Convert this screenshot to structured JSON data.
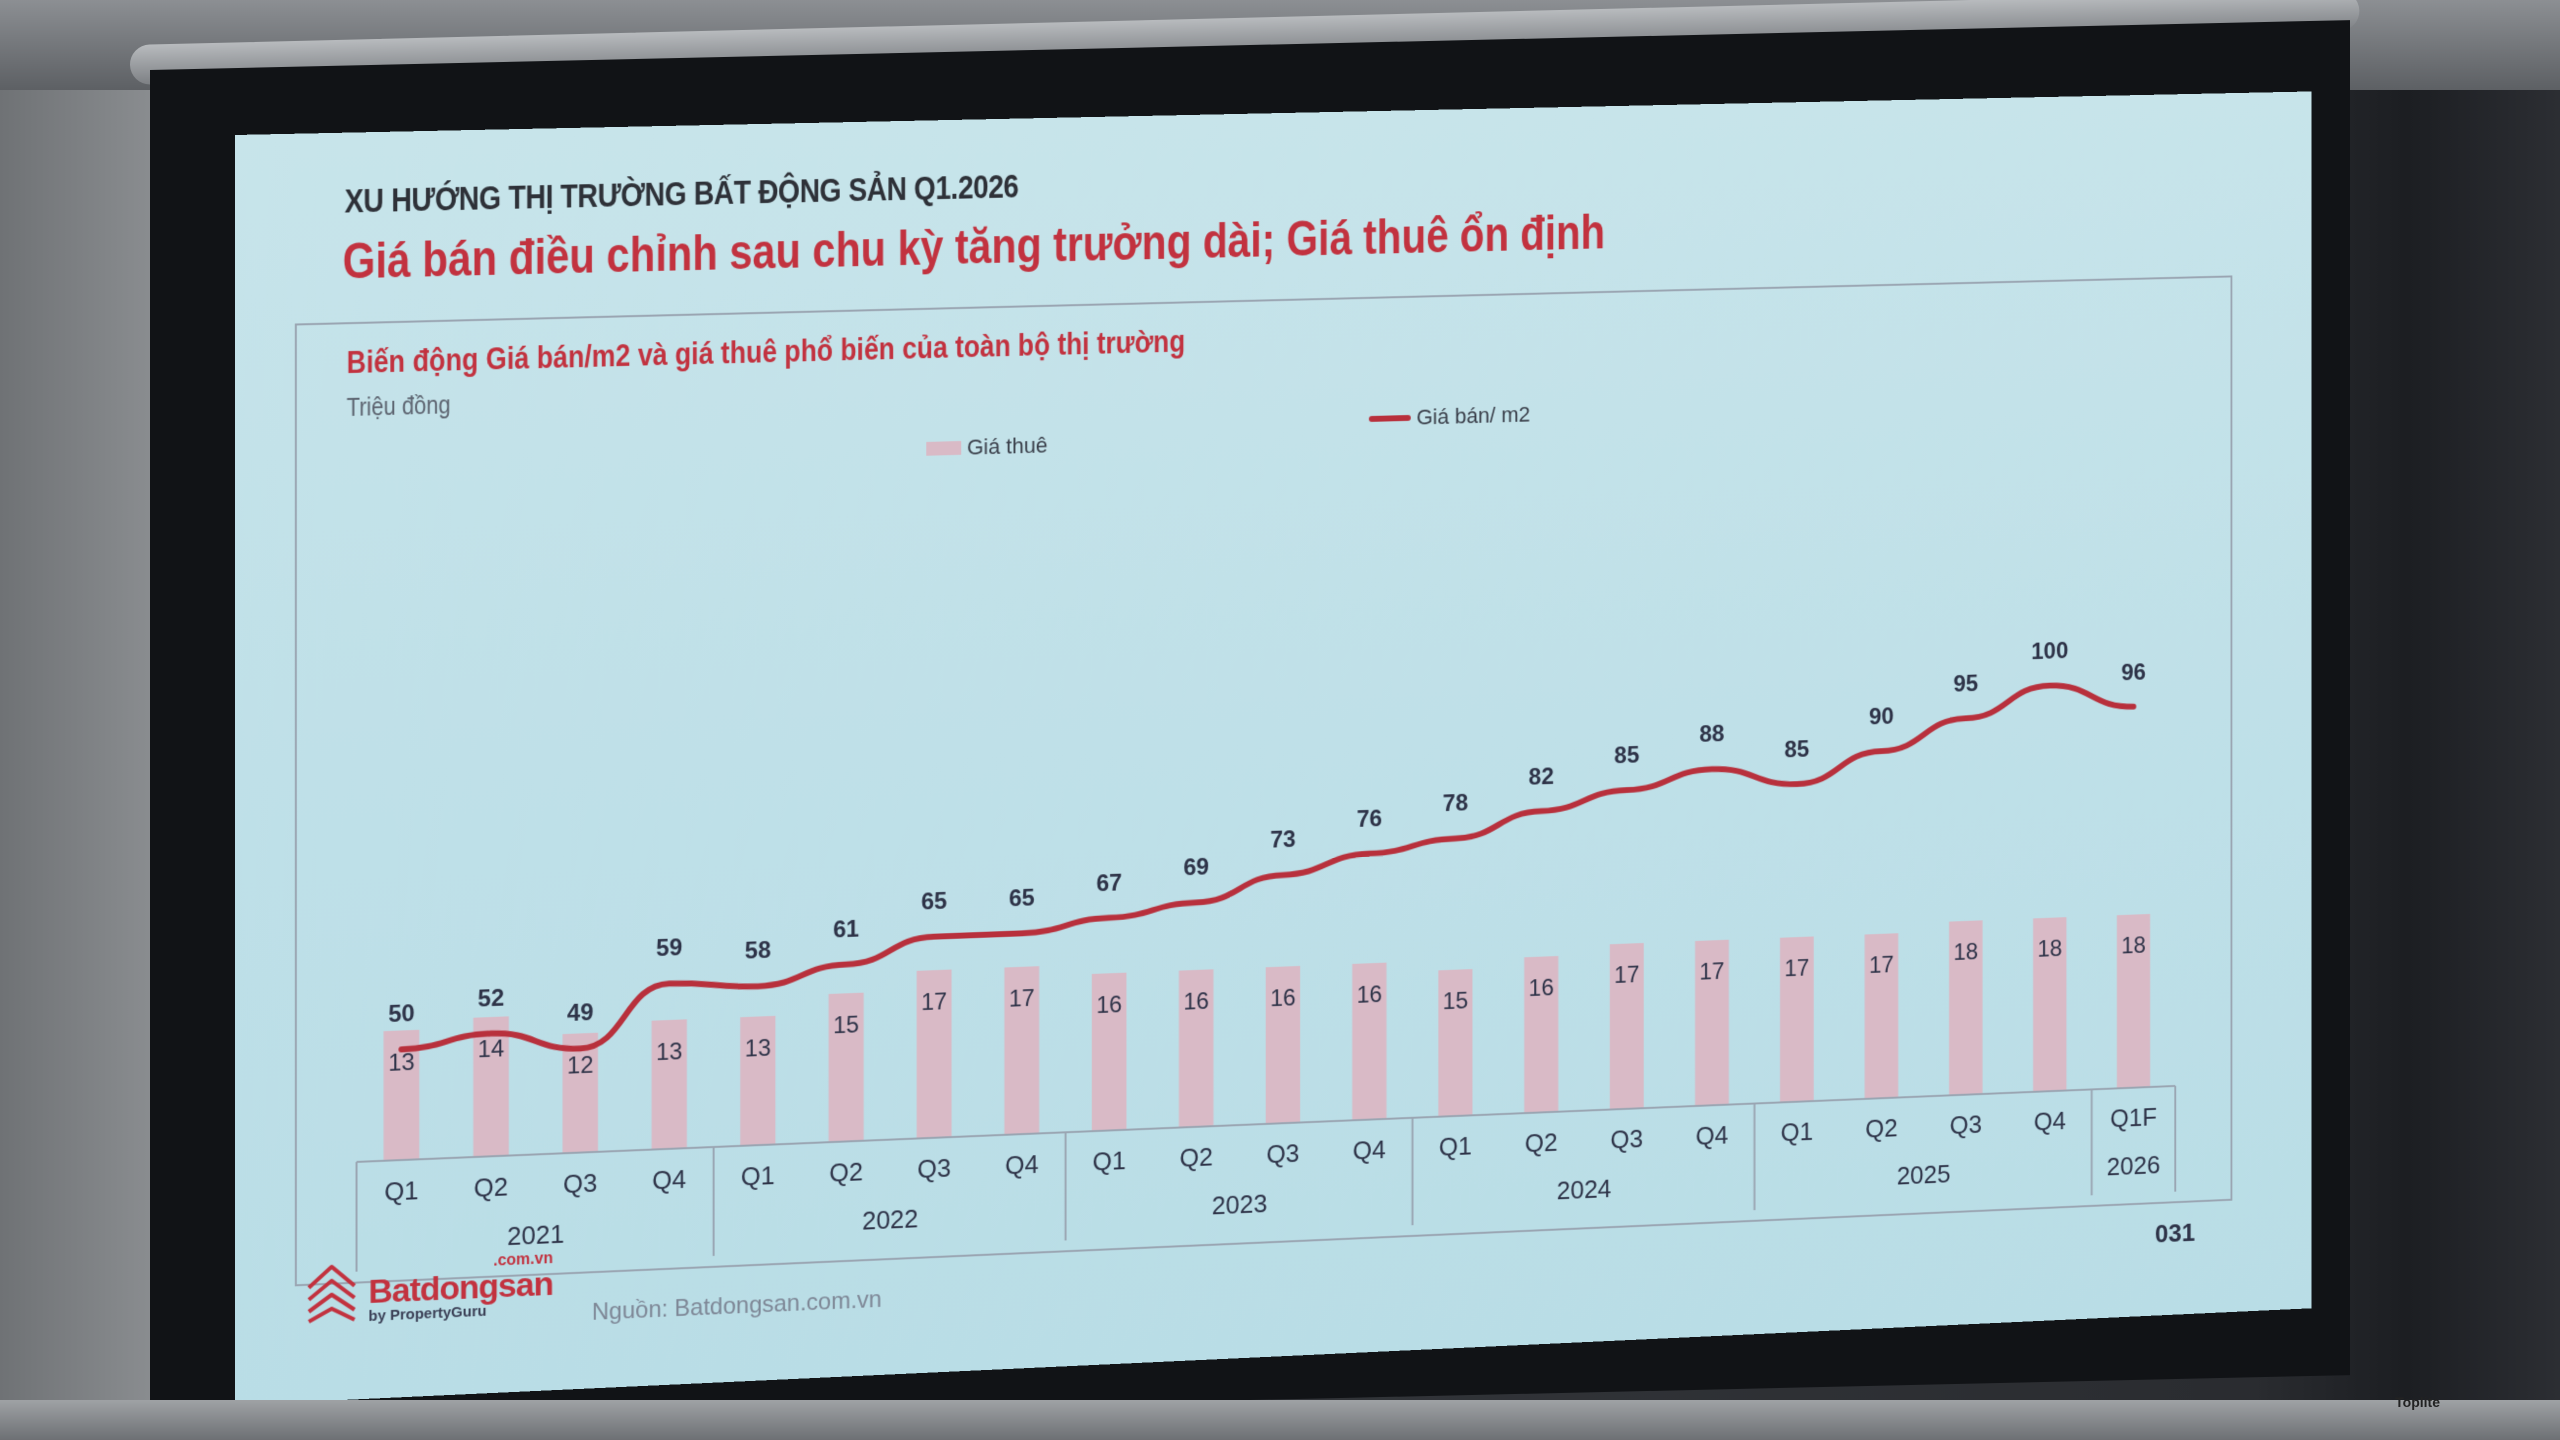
{
  "slide": {
    "kicker": "XU HƯỚNG THỊ TRƯỜNG BẤT ĐỘNG SẢN Q1.2026",
    "title": "Giá bán điều chỉnh sau chu kỳ tăng trưởng dài; Giá thuê ổn định",
    "chart_title": "Biến động Giá bán/m2 và giá thuê phổ biến của toàn bộ thị trường",
    "unit": "Triệu đồng",
    "legend": {
      "bar": "Giá thuê",
      "line": "Giá bán/ m2"
    },
    "source": "Nguồn: Batdongsan.com.vn",
    "page_number": "031",
    "logo": {
      "domain": ".com.vn",
      "name": "Batdongsan",
      "sub": "by PropertyGuru",
      "icon": "house-chevron-logo-icon"
    },
    "screen_brand": "Toplite",
    "colors": {
      "accent_red": "#c2323f",
      "line": "#b8303c",
      "bar": "#d9bac6",
      "text_dark": "#2e3348",
      "screen_bg": "#c3e2e9"
    }
  },
  "chart_data": {
    "type": "bar+line",
    "title": "Biến động Giá bán/m2 và giá thuê phổ biến của toàn bộ thị trường",
    "ylabel": "Triệu đồng",
    "xlabel": "",
    "categories": [
      "Q1",
      "Q2",
      "Q3",
      "Q4",
      "Q1",
      "Q2",
      "Q3",
      "Q4",
      "Q1",
      "Q2",
      "Q3",
      "Q4",
      "Q1",
      "Q2",
      "Q3",
      "Q4",
      "Q1",
      "Q2",
      "Q3",
      "Q4",
      "Q1F"
    ],
    "year_groups": [
      {
        "label": "2021",
        "span": 4
      },
      {
        "label": "2022",
        "span": 4
      },
      {
        "label": "2023",
        "span": 4
      },
      {
        "label": "2024",
        "span": 4
      },
      {
        "label": "2025",
        "span": 4
      },
      {
        "label": "2026",
        "span": 1
      }
    ],
    "series": [
      {
        "name": "Giá thuê",
        "type": "bar",
        "values": [
          13,
          14,
          12,
          13,
          13,
          15,
          17,
          17,
          16,
          16,
          16,
          16,
          15,
          16,
          17,
          17,
          17,
          17,
          18,
          18,
          18
        ]
      },
      {
        "name": "Giá bán/ m2",
        "type": "line",
        "values": [
          50,
          52,
          49,
          59,
          58,
          61,
          65,
          65,
          67,
          69,
          73,
          76,
          78,
          82,
          85,
          88,
          85,
          90,
          95,
          100,
          96
        ]
      }
    ],
    "legend_position": "top",
    "grid": false,
    "data_labels": true
  }
}
